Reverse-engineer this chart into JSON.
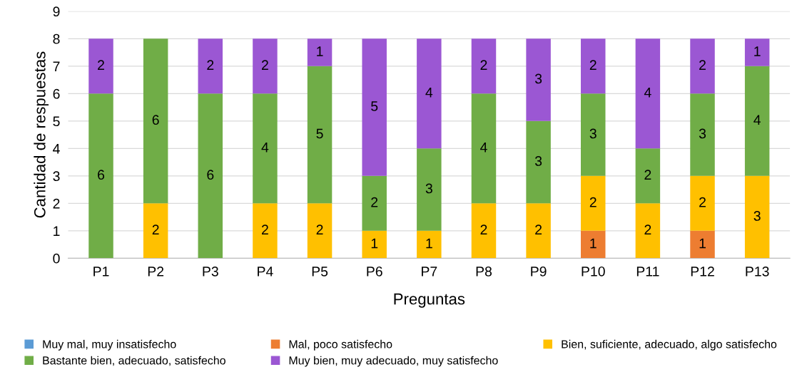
{
  "chart_data": {
    "type": "bar",
    "stacked": true,
    "xlabel": "Preguntas",
    "ylabel": "Cantidad de respuestas",
    "categories": [
      "P1",
      "P2",
      "P3",
      "P4",
      "P5",
      "P6",
      "P7",
      "P8",
      "P9",
      "P10",
      "P11",
      "P12",
      "P13"
    ],
    "ylim": [
      0,
      9
    ],
    "yticks": [
      0,
      1,
      2,
      3,
      4,
      5,
      6,
      7,
      8,
      9
    ],
    "grid": "y",
    "legend": "bottom",
    "series": [
      {
        "name": "Muy mal, muy insatisfecho",
        "color": "#5b9bd5",
        "values": [
          0,
          0,
          0,
          0,
          0,
          0,
          0,
          0,
          0,
          0,
          0,
          0,
          0
        ],
        "value_labels": [
          null,
          null,
          null,
          null,
          null,
          null,
          null,
          null,
          null,
          null,
          null,
          null,
          null
        ]
      },
      {
        "name": "Mal, poco satisfecho",
        "color": "#ed7d31",
        "values": [
          0,
          0,
          0,
          0,
          0,
          0,
          0,
          0,
          0,
          1,
          0,
          1,
          0
        ],
        "value_labels": [
          null,
          null,
          null,
          null,
          null,
          null,
          null,
          null,
          null,
          "1",
          null,
          "1",
          null
        ]
      },
      {
        "name": "Bien, suficiente, adecuado, algo satisfecho",
        "color": "#ffc000",
        "values": [
          0,
          2,
          0,
          2,
          2,
          1,
          1,
          2,
          2,
          2,
          2,
          2,
          3
        ],
        "value_labels": [
          null,
          "2",
          null,
          "2",
          "2",
          "1",
          "1",
          "2",
          "2",
          "2",
          "2",
          "2",
          "3"
        ]
      },
      {
        "name": "Bastante bien, adecuado, satisfecho",
        "color": "#70ad47",
        "values": [
          6,
          6,
          6,
          4,
          5,
          2,
          3,
          4,
          3,
          3,
          2,
          3,
          4
        ],
        "value_labels": [
          "6",
          "6",
          "6",
          "4",
          "5",
          "2",
          "3",
          "4",
          "3",
          "3",
          "2",
          "3",
          "4"
        ]
      },
      {
        "name": "Muy bien, muy adecuado, muy satisfecho",
        "color": "#9b57d3",
        "values": [
          2,
          0,
          2,
          2,
          1,
          5,
          4,
          2,
          3,
          2,
          4,
          2,
          1
        ],
        "value_labels": [
          "2",
          null,
          "2",
          "2",
          "1",
          "5",
          "4",
          "2",
          "3",
          "2",
          "4",
          "2",
          "1"
        ]
      }
    ]
  }
}
